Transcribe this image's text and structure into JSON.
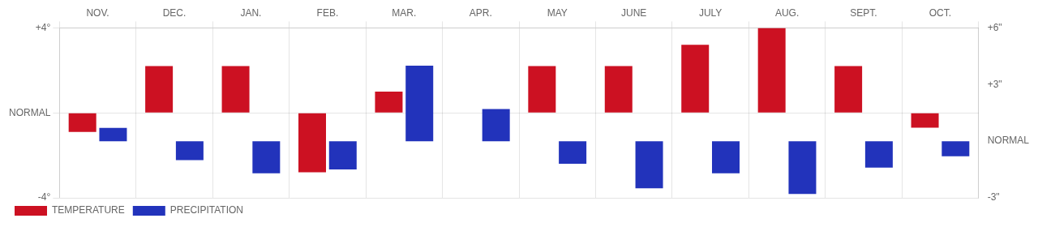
{
  "chart_data": {
    "type": "bar",
    "categories": [
      "NOV.",
      "DEC.",
      "JAN.",
      "FEB.",
      "MAR.",
      "APR.",
      "MAY",
      "JUNE",
      "JULY",
      "AUG.",
      "SEPT.",
      "OCT."
    ],
    "series": [
      {
        "name": "TEMPERATURE",
        "color": "#CC1122",
        "axis": "y",
        "values": [
          -0.9,
          2.2,
          2.2,
          -2.8,
          1.0,
          0.0,
          2.2,
          2.2,
          3.2,
          4.0,
          2.2,
          -0.7
        ]
      },
      {
        "name": "PRECIPITATION",
        "color": "#2233BB",
        "axis": "y2",
        "values": [
          0.7,
          -1.0,
          -1.7,
          -1.5,
          4.0,
          1.7,
          -1.2,
          -2.5,
          -1.7,
          -2.8,
          -1.4,
          -0.8
        ]
      }
    ],
    "ylim": [
      -4,
      4
    ],
    "yticks": [
      {
        "value": -4,
        "label": "-4°"
      },
      {
        "value": 0,
        "label": "NORMAL"
      },
      {
        "value": 4,
        "label": "+4°"
      }
    ],
    "y2lim": [
      -3,
      6
    ],
    "y2ticks": [
      {
        "value": -3,
        "label": "-3\""
      },
      {
        "value": 0,
        "label": "NORMAL"
      },
      {
        "value": 3,
        "label": "+3\""
      },
      {
        "value": 6,
        "label": "+6\""
      }
    ],
    "grid": true,
    "legend": "lower left"
  }
}
